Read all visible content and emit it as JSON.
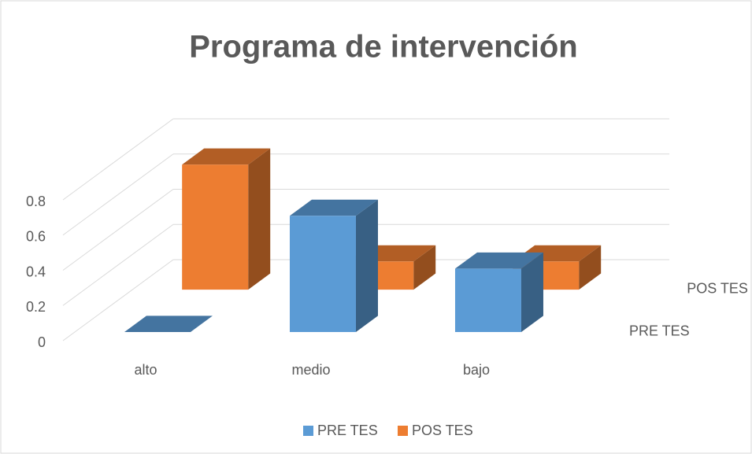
{
  "chart_data": {
    "type": "bar3d",
    "title": "Programa de intervención",
    "categories": [
      "alto",
      "medio",
      "bajo"
    ],
    "series": [
      {
        "name": "PRE TES",
        "color": "#5b9bd5",
        "values": [
          0,
          0.66,
          0.36
        ]
      },
      {
        "name": "POS TES",
        "color": "#ed7d31",
        "values": [
          0.71,
          0.16,
          0.16
        ]
      }
    ],
    "ylim": [
      0,
      0.8
    ],
    "yticks": [
      0,
      0.2,
      0.4,
      0.6,
      0.8
    ],
    "grid": true,
    "legend": "bottom"
  }
}
